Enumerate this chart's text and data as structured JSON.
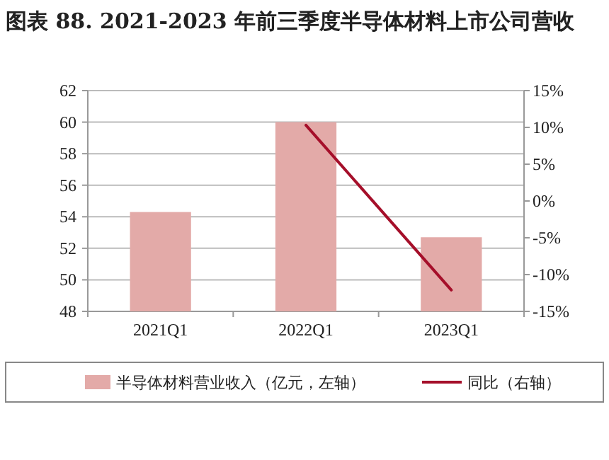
{
  "chart_data": {
    "type": "bar",
    "title": "图表 88. 2021-2023 年前三季度半导体材料上市公司营收",
    "categories": [
      "2021Q1",
      "2022Q1",
      "2023Q1"
    ],
    "series": [
      {
        "name": "半导体材料营业收入（亿元，左轴）",
        "color": "#e3aaa8",
        "values": [
          54.3,
          60.0,
          52.7
        ]
      },
      {
        "name": "同比（右轴）",
        "type": "line",
        "axis": "y2",
        "color": "#a50f2a",
        "values": [
          null,
          10.3,
          -12.1
        ]
      }
    ],
    "ylim": [
      48,
      62
    ],
    "yticks": [
      48,
      50,
      52,
      54,
      56,
      58,
      60,
      62
    ],
    "y2lim": [
      -15,
      15
    ],
    "y2ticks": [
      {
        "value": -15,
        "label": "-15%"
      },
      {
        "value": -10,
        "label": "-10%"
      },
      {
        "value": -5,
        "label": "-5%"
      },
      {
        "value": 0,
        "label": "0%"
      },
      {
        "value": 5,
        "label": "5%"
      },
      {
        "value": 10,
        "label": "10%"
      },
      {
        "value": 15,
        "label": "15%"
      }
    ],
    "grid": "y",
    "legend": "bottom"
  }
}
